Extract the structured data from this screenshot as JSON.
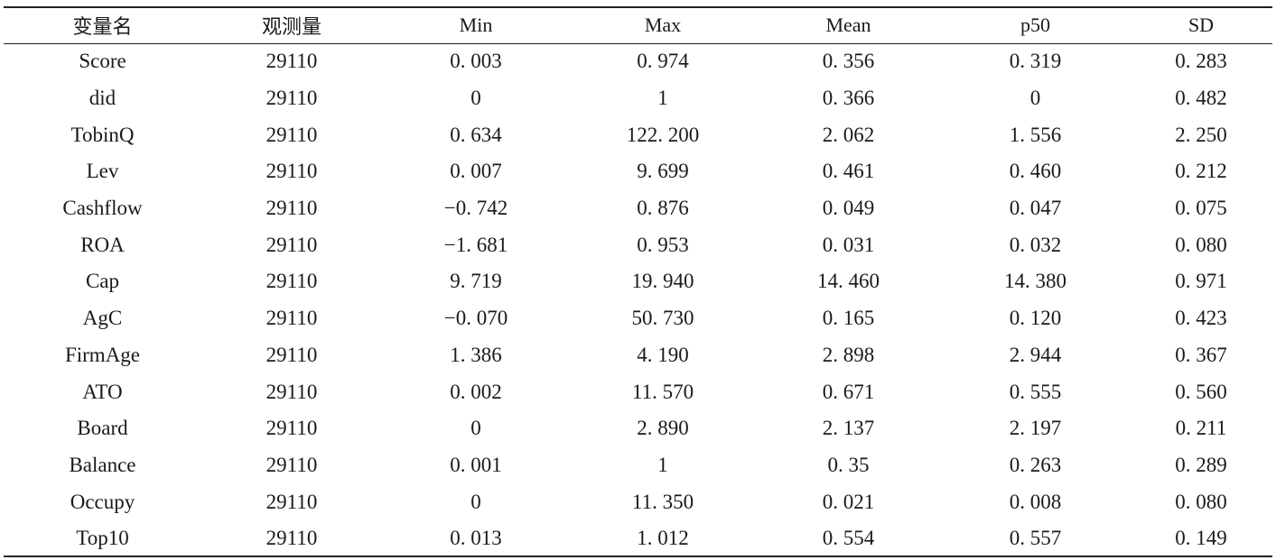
{
  "table": {
    "headers": [
      "变量名",
      "观测量",
      "Min",
      "Max",
      "Mean",
      "p50",
      "SD"
    ],
    "rows": [
      [
        "Score",
        "29110",
        "0. 003",
        "0. 974",
        "0. 356",
        "0. 319",
        "0. 283"
      ],
      [
        "did",
        "29110",
        "0",
        "1",
        "0. 366",
        "0",
        "0. 482"
      ],
      [
        "TobinQ",
        "29110",
        "0. 634",
        "122. 200",
        "2. 062",
        "1. 556",
        "2. 250"
      ],
      [
        "Lev",
        "29110",
        "0. 007",
        "9. 699",
        "0. 461",
        "0. 460",
        "0. 212"
      ],
      [
        "Cashflow",
        "29110",
        "−0. 742",
        "0. 876",
        "0. 049",
        "0. 047",
        "0. 075"
      ],
      [
        "ROA",
        "29110",
        "−1. 681",
        "0. 953",
        "0. 031",
        "0. 032",
        "0. 080"
      ],
      [
        "Cap",
        "29110",
        "9. 719",
        "19. 940",
        "14. 460",
        "14. 380",
        "0. 971"
      ],
      [
        "AgC",
        "29110",
        "−0. 070",
        "50. 730",
        "0. 165",
        "0. 120",
        "0. 423"
      ],
      [
        "FirmAge",
        "29110",
        "1. 386",
        "4. 190",
        "2. 898",
        "2. 944",
        "0. 367"
      ],
      [
        "ATO",
        "29110",
        "0. 002",
        "11. 570",
        "0. 671",
        "0. 555",
        "0. 560"
      ],
      [
        "Board",
        "29110",
        "0",
        "2. 890",
        "2. 137",
        "2. 197",
        "0. 211"
      ],
      [
        "Balance",
        "29110",
        "0. 001",
        "1",
        "0. 35",
        "0. 263",
        "0. 289"
      ],
      [
        "Occupy",
        "29110",
        "0",
        "11. 350",
        "0. 021",
        "0. 008",
        "0. 080"
      ],
      [
        "Top10",
        "29110",
        "0. 013",
        "1. 012",
        "0. 554",
        "0. 557",
        "0. 149"
      ]
    ]
  }
}
